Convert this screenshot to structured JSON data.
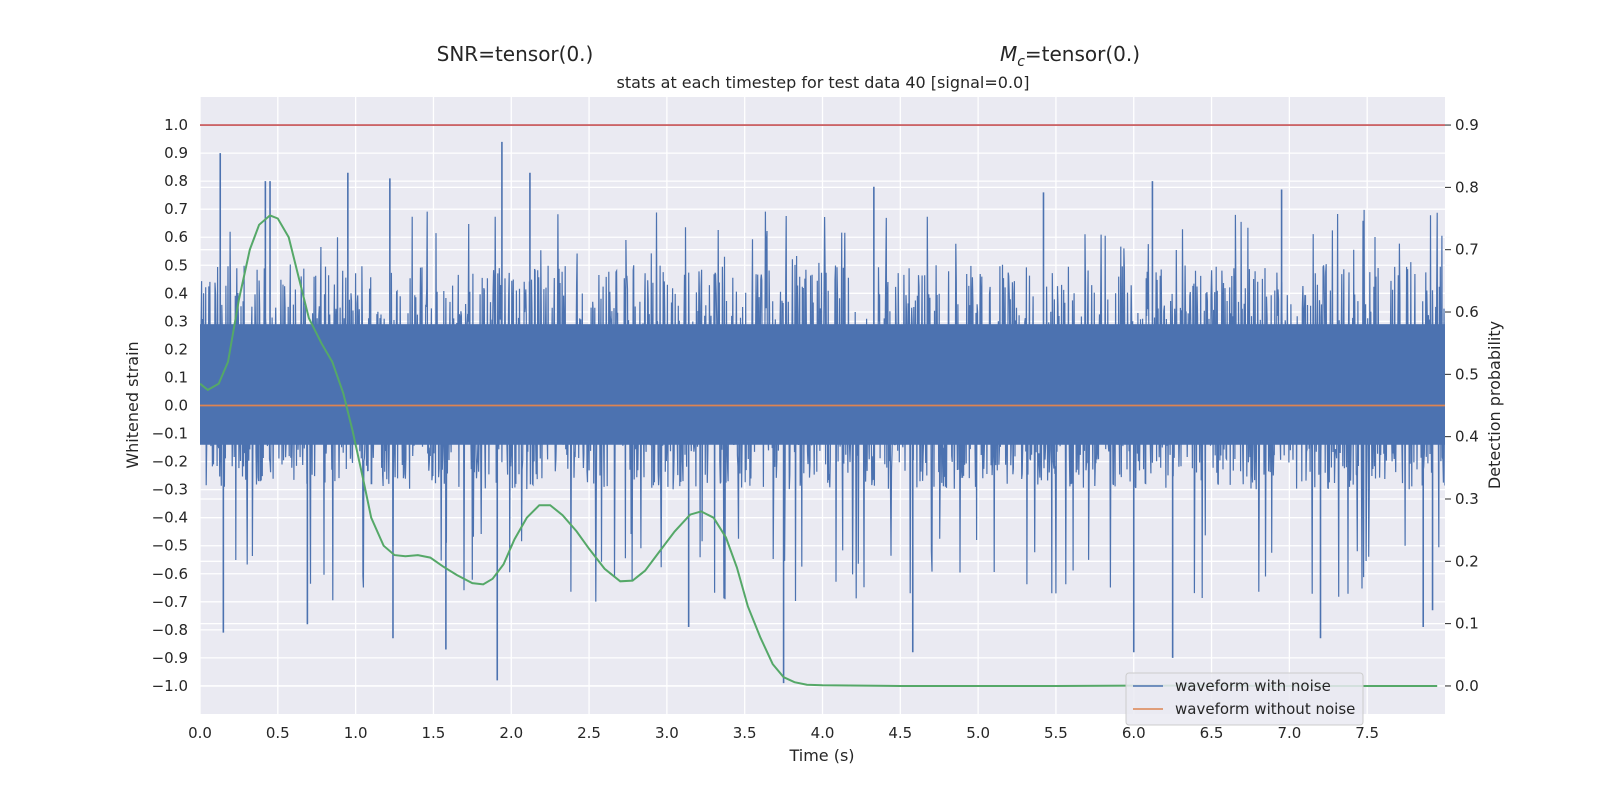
{
  "chart_data": {
    "type": "line",
    "title_left": "SNR=tensor(0.)",
    "title_right_prefix": "M",
    "title_right_sub": "c",
    "title_right_suffix": "=tensor(0.)",
    "title": "stats at each timestep for test data 40 [signal=0.0]",
    "xlabel": "Time (s)",
    "ylabel": "Whitened strain",
    "y2label": "Detection probability",
    "xlim": [
      0.0,
      8.0
    ],
    "ylim": [
      -1.1,
      1.1
    ],
    "y2lim": [
      -0.045,
      0.945
    ],
    "xticks": [
      "0.0",
      "0.5",
      "1.0",
      "1.5",
      "2.0",
      "2.5",
      "3.0",
      "3.5",
      "4.0",
      "4.5",
      "5.0",
      "5.5",
      "6.0",
      "6.5",
      "7.0",
      "7.5"
    ],
    "yticks": [
      "1.0",
      "0.9",
      "0.8",
      "0.7",
      "0.6",
      "0.5",
      "0.4",
      "0.3",
      "0.2",
      "0.1",
      "0.0",
      "−0.1",
      "−0.2",
      "−0.3",
      "−0.4",
      "−0.5",
      "−0.6",
      "−0.7",
      "−0.8",
      "−0.9",
      "−1.0"
    ],
    "y2ticks": [
      "0.9",
      "0.8",
      "0.7",
      "0.6",
      "0.5",
      "0.4",
      "0.3",
      "0.2",
      "0.1",
      "0.0"
    ],
    "grid": true,
    "legend_position": "lower-right",
    "threshold": {
      "value": 0.9,
      "axis": "right",
      "color": "#c44e52"
    },
    "series": [
      {
        "name": "waveform with noise",
        "axis": "left",
        "color": "#4c72b0",
        "envelope_note": "dense noise trace between about -0.35 and 0.5 with spikes",
        "spikes": [
          {
            "x": 0.13,
            "y": 0.9
          },
          {
            "x": 0.15,
            "y": -0.81
          },
          {
            "x": 0.42,
            "y": 0.8
          },
          {
            "x": 0.45,
            "y": 0.8
          },
          {
            "x": 0.69,
            "y": -0.78
          },
          {
            "x": 0.95,
            "y": 0.83
          },
          {
            "x": 1.22,
            "y": 0.81
          },
          {
            "x": 1.24,
            "y": -0.83
          },
          {
            "x": 1.58,
            "y": -0.87
          },
          {
            "x": 1.91,
            "y": -0.98
          },
          {
            "x": 1.94,
            "y": 0.94
          },
          {
            "x": 2.12,
            "y": 0.83
          },
          {
            "x": 3.14,
            "y": -0.79
          },
          {
            "x": 3.75,
            "y": -0.99
          },
          {
            "x": 4.33,
            "y": 0.78
          },
          {
            "x": 4.58,
            "y": -0.88
          },
          {
            "x": 5.42,
            "y": 0.76
          },
          {
            "x": 6.0,
            "y": -0.88
          },
          {
            "x": 6.12,
            "y": 0.8
          },
          {
            "x": 6.25,
            "y": -0.9
          },
          {
            "x": 6.95,
            "y": 0.77
          },
          {
            "x": 7.2,
            "y": -0.83
          },
          {
            "x": 7.86,
            "y": -0.79
          },
          {
            "x": 7.92,
            "y": -0.73
          }
        ]
      },
      {
        "name": "waveform without noise",
        "axis": "left",
        "color": "#dd8452",
        "x": [
          0.0,
          8.0
        ],
        "y": [
          0.0,
          0.0
        ]
      },
      {
        "name": "",
        "axis": "right",
        "color": "#55a868",
        "x": [
          0.0,
          0.05,
          0.12,
          0.18,
          0.25,
          0.32,
          0.38,
          0.45,
          0.5,
          0.57,
          0.63,
          0.7,
          0.78,
          0.85,
          0.92,
          0.98,
          1.05,
          1.1,
          1.18,
          1.25,
          1.32,
          1.4,
          1.48,
          1.56,
          1.65,
          1.75,
          1.82,
          1.88,
          1.95,
          2.02,
          2.1,
          2.18,
          2.25,
          2.33,
          2.42,
          2.5,
          2.6,
          2.7,
          2.78,
          2.86,
          2.95,
          3.05,
          3.15,
          3.22,
          3.3,
          3.38,
          3.45,
          3.52,
          3.6,
          3.68,
          3.75,
          3.82,
          3.9,
          4.0,
          4.5,
          5.0,
          5.5,
          6.0,
          6.5,
          7.0,
          7.5,
          7.95
        ],
        "y": [
          0.485,
          0.475,
          0.485,
          0.52,
          0.62,
          0.7,
          0.74,
          0.755,
          0.75,
          0.72,
          0.66,
          0.59,
          0.55,
          0.52,
          0.47,
          0.41,
          0.33,
          0.27,
          0.225,
          0.21,
          0.208,
          0.21,
          0.206,
          0.192,
          0.178,
          0.165,
          0.163,
          0.172,
          0.195,
          0.235,
          0.27,
          0.29,
          0.29,
          0.274,
          0.248,
          0.22,
          0.188,
          0.168,
          0.169,
          0.185,
          0.215,
          0.248,
          0.275,
          0.28,
          0.27,
          0.238,
          0.19,
          0.128,
          0.078,
          0.035,
          0.014,
          0.006,
          0.002,
          0.001,
          0.0,
          0.0,
          0.0,
          0.0005,
          0.0005,
          0.0,
          0.0,
          0.0
        ]
      }
    ]
  }
}
